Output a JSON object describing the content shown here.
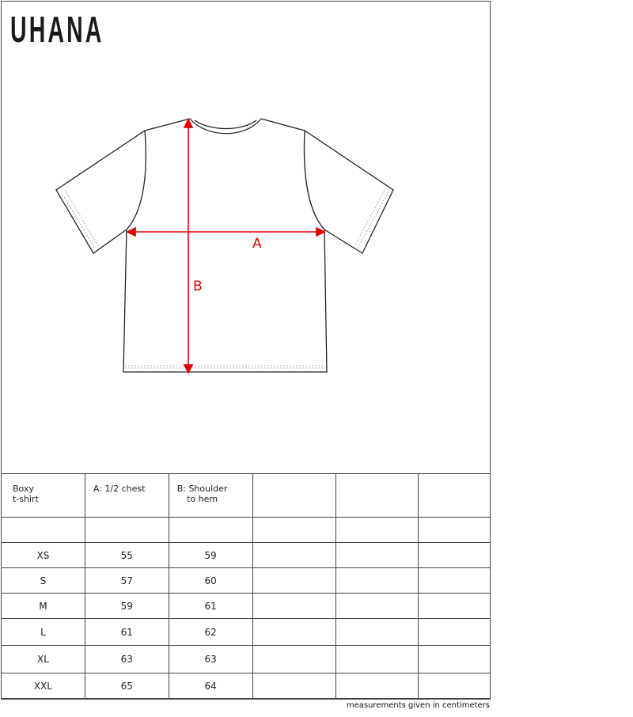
{
  "brand": "UHANA",
  "diagram": {
    "label_a": "A",
    "label_b": "B",
    "arrow_color": "#e00000"
  },
  "table": {
    "headers": [
      "Boxy\nt-shirt",
      "A: 1/2 chest",
      "B: Shoulder\nto hem",
      "",
      "",
      ""
    ],
    "rows": [
      [
        "XS",
        "55",
        "59"
      ],
      [
        "S",
        "57",
        "60"
      ],
      [
        "M",
        "59",
        "61"
      ],
      [
        "L",
        "61",
        "62"
      ],
      [
        "XL",
        "63",
        "63"
      ],
      [
        "XXL",
        "65",
        "64"
      ]
    ]
  },
  "footnote": "measurements given in centimeters"
}
